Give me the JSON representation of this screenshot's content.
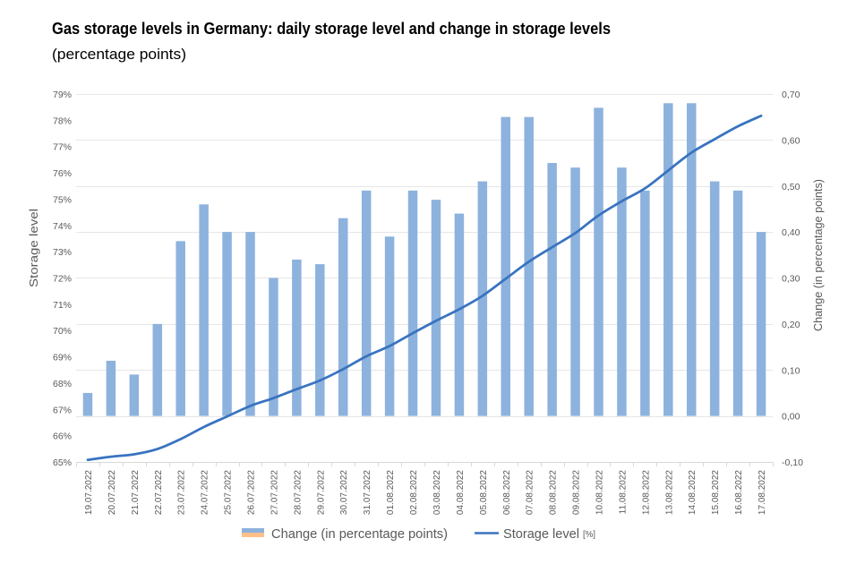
{
  "chart_data": {
    "type": "bar",
    "title": "Gas storage levels in Germany: daily storage level and change in storage levels",
    "subtitle": "(percentage points)",
    "xlabel": "",
    "categories": [
      "19.07.2022",
      "20.07.2022",
      "21.07.2022",
      "22.07.2022",
      "23.07.2022",
      "24.07.2022",
      "25.07.2022",
      "26.07.2022",
      "27.07.2022",
      "28.07.2022",
      "29.07.2022",
      "30.07.2022",
      "31.07.2022",
      "01.08.2022",
      "02.08.2022",
      "03.08.2022",
      "04.08.2022",
      "05.08.2022",
      "06.08.2022",
      "07.08.2022",
      "08.08.2022",
      "09.08.2022",
      "10.08.2022",
      "11.08.2022",
      "12.08.2022",
      "13.08.2022",
      "14.08.2022",
      "15.08.2022",
      "16.08.2022",
      "17.08.2022"
    ],
    "series": [
      {
        "name": "Change (in percentage points)",
        "type": "bar",
        "axis": "right",
        "color": "#8DB2DD",
        "negative_color": "#FFC08A",
        "values": [
          0.05,
          0.12,
          0.09,
          0.2,
          0.38,
          0.46,
          0.4,
          0.4,
          0.3,
          0.34,
          0.33,
          0.43,
          0.49,
          0.39,
          0.49,
          0.47,
          0.44,
          0.51,
          0.65,
          0.65,
          0.55,
          0.54,
          0.67,
          0.54,
          0.49,
          0.68,
          0.68,
          0.51,
          0.49,
          0.4
        ]
      },
      {
        "name": "Storage level",
        "unit": "[%]",
        "type": "line",
        "axis": "left",
        "color": "#3873C0",
        "values": [
          65.08,
          65.2,
          65.29,
          65.49,
          65.87,
          66.33,
          66.73,
          67.13,
          67.43,
          67.77,
          68.1,
          68.53,
          69.02,
          69.41,
          69.9,
          70.37,
          70.81,
          71.32,
          71.97,
          72.62,
          73.17,
          73.71,
          74.38,
          74.92,
          75.41,
          76.09,
          76.77,
          77.28,
          77.77,
          78.17
        ]
      }
    ],
    "y_left": {
      "label": "Storage level",
      "range": [
        65,
        79
      ],
      "ticks": [
        65,
        66,
        67,
        68,
        69,
        70,
        71,
        72,
        73,
        74,
        75,
        76,
        77,
        78,
        79
      ],
      "tick_labels": [
        "65%",
        "66%",
        "67%",
        "68%",
        "69%",
        "70%",
        "71%",
        "72%",
        "73%",
        "74%",
        "75%",
        "76%",
        "77%",
        "78%",
        "79%"
      ]
    },
    "y_right": {
      "label": "Change (in percentage points)",
      "range": [
        -0.1,
        0.7
      ],
      "ticks": [
        -0.1,
        0.0,
        0.1,
        0.2,
        0.3,
        0.4,
        0.5,
        0.6,
        0.7
      ],
      "tick_labels": [
        "-0,10",
        "0,00",
        "0,10",
        "0,20",
        "0,30",
        "0,40",
        "0,50",
        "0,60",
        "0,70"
      ]
    },
    "grid": true,
    "legend": {
      "position": "bottom",
      "items": [
        {
          "label": "Change (in percentage points)"
        },
        {
          "label": "Storage level",
          "unit": "[%]"
        }
      ]
    },
    "colors": {
      "gridline": "#E6E6E6",
      "axis_line": "#D9D9D9"
    }
  }
}
